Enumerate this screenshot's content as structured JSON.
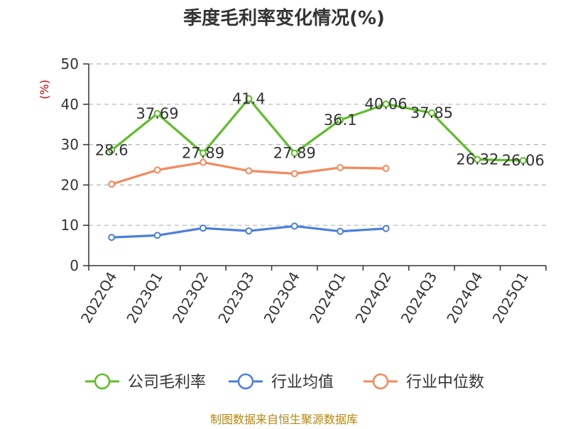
{
  "chart_data": {
    "type": "line",
    "title": "季度毛利率变化情况(%)",
    "ylabel": "(%)",
    "xlabel": "",
    "ylim": [
      0,
      50
    ],
    "yticks": [
      0,
      10,
      20,
      30,
      40,
      50
    ],
    "grid": true,
    "legend_position": "bottom",
    "categories": [
      "2022Q4",
      "2023Q1",
      "2023Q2",
      "2023Q3",
      "2023Q4",
      "2024Q1",
      "2024Q2",
      "2024Q3",
      "2024Q4",
      "2025Q1"
    ],
    "series": [
      {
        "name": "公司毛利率",
        "color": "#5cbf2a",
        "values": [
          28.6,
          37.69,
          27.89,
          41.4,
          27.89,
          36.1,
          40.06,
          37.85,
          26.32,
          26.06
        ],
        "labels": [
          "28.6",
          "37.69",
          "27.89",
          "41.4",
          "27.89",
          "36.1",
          "40.06",
          "37.85",
          "26.32",
          "26.06"
        ]
      },
      {
        "name": "行业均值",
        "color": "#4a7fdb",
        "values": [
          7.0,
          7.5,
          9.3,
          8.6,
          9.8,
          8.5,
          9.2,
          null,
          null,
          null
        ]
      },
      {
        "name": "行业中位数",
        "color": "#f4895b",
        "values": [
          20.2,
          23.7,
          25.6,
          23.5,
          22.8,
          24.3,
          24.1,
          null,
          null,
          null
        ]
      }
    ]
  },
  "source": "制图数据来自恒生聚源数据库"
}
